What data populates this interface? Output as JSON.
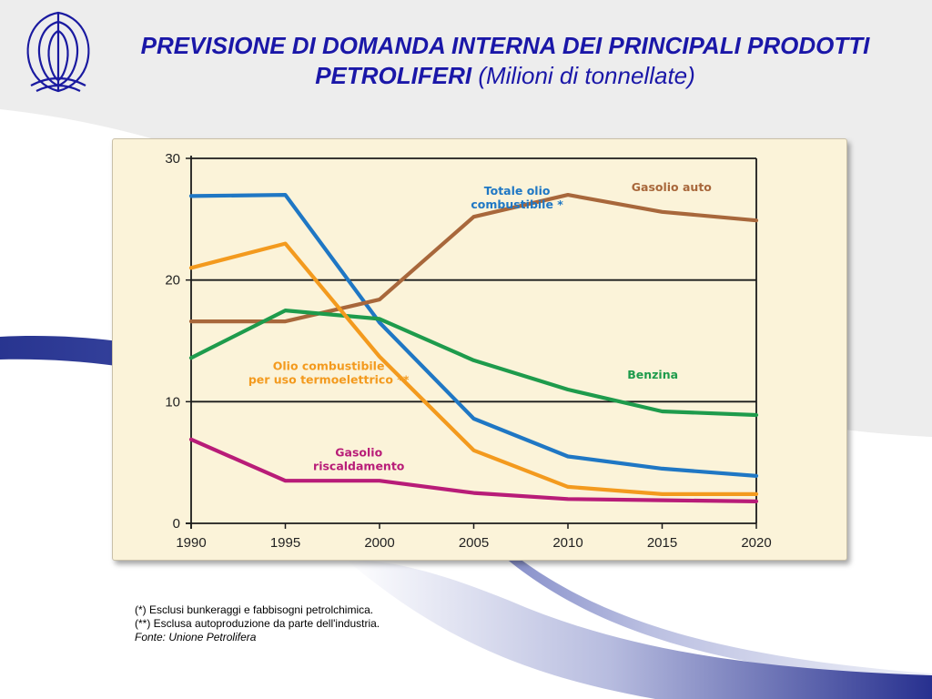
{
  "slide": {
    "title_main": "PREVISIONE DI DOMANDA INTERNA DEI PRINCIPALI PRODOTTI PETROLIFERI",
    "title_unit": "(Milioni di tonnellate)",
    "notes": [
      "(*) Esclusi bunkeraggi e fabbisogni petrolchimica.",
      "(**) Esclusa autoproduzione da parte dell'industria."
    ],
    "source": "Fonte: Unione Petrolifera"
  },
  "chart_data": {
    "type": "line",
    "title": "",
    "xlabel": "",
    "ylabel": "",
    "x": [
      1990,
      1995,
      2000,
      2005,
      2010,
      2015,
      2020
    ],
    "xlim": [
      1990,
      2020
    ],
    "ylim": [
      0,
      30
    ],
    "yticks": [
      0,
      10,
      20,
      30
    ],
    "grid": "horizontal lines at 10, 20, 30",
    "series": [
      {
        "name": "Totale olio combustibile *",
        "color": "#1f77c4",
        "values": [
          26.9,
          27.0,
          16.5,
          8.6,
          5.5,
          4.5,
          3.9
        ]
      },
      {
        "name": "Gasolio auto",
        "color": "#a8673b",
        "values": [
          16.6,
          16.6,
          18.4,
          25.2,
          27.0,
          25.6,
          24.9
        ]
      },
      {
        "name": "Benzina",
        "color": "#1e9b4c",
        "values": [
          13.6,
          17.5,
          16.8,
          13.4,
          11.0,
          9.2,
          8.9
        ]
      },
      {
        "name": "Olio combustibile per uso termoelettrico **",
        "color": "#f39a1e",
        "values": [
          21.0,
          23.0,
          13.7,
          6.0,
          3.0,
          2.4,
          2.4
        ]
      },
      {
        "name": "Gasolio riscaldamento",
        "color": "#b81c78",
        "values": [
          6.9,
          3.5,
          3.5,
          2.5,
          2.0,
          1.9,
          1.8
        ]
      }
    ],
    "annotations": [
      {
        "series": 0,
        "lines": [
          "Totale olio",
          "combustibile *"
        ],
        "x": 2007.3,
        "y": 27.0,
        "anchor": "middle"
      },
      {
        "series": 1,
        "lines": [
          "Gasolio auto"
        ],
        "x": 2015.5,
        "y": 27.3,
        "anchor": "middle"
      },
      {
        "series": 2,
        "lines": [
          "Benzina"
        ],
        "x": 2014.5,
        "y": 11.9,
        "anchor": "middle"
      },
      {
        "series": 3,
        "lines": [
          "Olio combustibile",
          "per uso termoelettrico **"
        ],
        "x": 1997.3,
        "y": 12.6,
        "anchor": "middle"
      },
      {
        "series": 4,
        "lines": [
          "Gasolio",
          "riscaldamento"
        ],
        "x": 1998.9,
        "y": 5.5,
        "anchor": "middle"
      }
    ]
  }
}
